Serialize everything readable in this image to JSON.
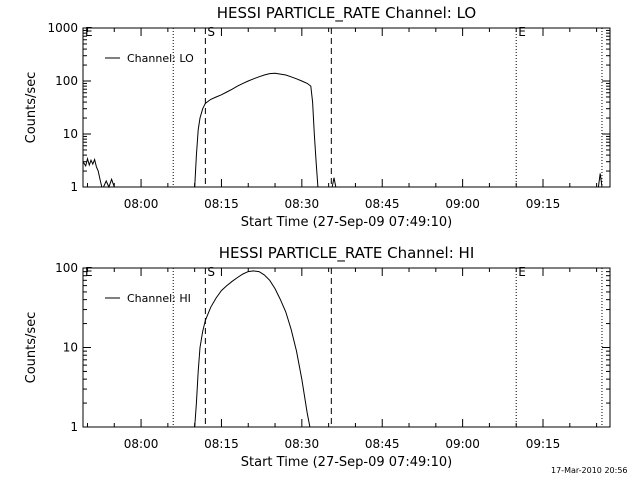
{
  "timestamp": "17-Mar-2010 20:56",
  "chart_data": [
    {
      "type": "line",
      "title": "HESSI PARTICLE_RATE Channel: LO",
      "xlabel": "Start Time (27-Sep-09 07:49:10)",
      "ylabel": "Counts/sec",
      "yscale": "log",
      "xlim": [
        "07:49:10",
        "09:27:30"
      ],
      "ylim": [
        1,
        1000
      ],
      "x_ticks": [
        "08:00",
        "08:15",
        "08:30",
        "08:45",
        "09:00",
        "09:15"
      ],
      "y_ticks": [
        "1",
        "10",
        "100",
        "1000"
      ],
      "legend": "Channel: LO",
      "legend_position": "top-left",
      "markers": [
        {
          "label": "E",
          "time": "07:49:10",
          "style": "dotted"
        },
        {
          "label": "S",
          "time": "08:12:00",
          "style": "dashed"
        },
        {
          "label": "",
          "time": "08:35:30",
          "style": "dashed"
        },
        {
          "label": "E",
          "time": "09:10:00",
          "style": "dotted"
        },
        {
          "label": "",
          "time": "08:06:00",
          "style": "dotted"
        },
        {
          "label": "",
          "time": "09:26:00",
          "style": "dotted"
        }
      ],
      "series": [
        {
          "name": "Channel: LO",
          "points": [
            [
              "07:49:10",
              3.0
            ],
            [
              "07:49:40",
              2.5
            ],
            [
              "07:50:00",
              3.4
            ],
            [
              "07:50:20",
              2.6
            ],
            [
              "07:50:40",
              3.2
            ],
            [
              "07:51:00",
              2.7
            ],
            [
              "07:51:20",
              3.3
            ],
            [
              "07:51:40",
              2.4
            ],
            [
              "07:52:00",
              2.0
            ],
            [
              "07:52:20",
              1.4
            ],
            [
              "07:52:40",
              1.0
            ],
            [
              "07:53:00",
              1.0
            ],
            [
              "07:53:30",
              1.3
            ],
            [
              "07:54:00",
              1.0
            ],
            [
              "07:54:30",
              1.4
            ],
            [
              "07:55:00",
              1.0
            ],
            [
              "08:10:00",
              1.0
            ],
            [
              "08:10:20",
              4
            ],
            [
              "08:10:40",
              12
            ],
            [
              "08:11:00",
              20
            ],
            [
              "08:11:30",
              30
            ],
            [
              "08:12:00",
              38
            ],
            [
              "08:13:00",
              45
            ],
            [
              "08:14:00",
              50
            ],
            [
              "08:15:00",
              55
            ],
            [
              "08:16:00",
              62
            ],
            [
              "08:17:00",
              70
            ],
            [
              "08:18:00",
              80
            ],
            [
              "08:19:00",
              90
            ],
            [
              "08:20:00",
              100
            ],
            [
              "08:21:00",
              110
            ],
            [
              "08:22:00",
              120
            ],
            [
              "08:23:00",
              130
            ],
            [
              "08:24:00",
              138
            ],
            [
              "08:25:00",
              140
            ],
            [
              "08:26:00",
              135
            ],
            [
              "08:27:00",
              130
            ],
            [
              "08:28:00",
              120
            ],
            [
              "08:29:00",
              110
            ],
            [
              "08:30:00",
              100
            ],
            [
              "08:31:00",
              90
            ],
            [
              "08:31:40",
              80
            ],
            [
              "08:32:00",
              40
            ],
            [
              "08:32:20",
              10
            ],
            [
              "08:32:40",
              3
            ],
            [
              "08:33:00",
              1.0
            ],
            [
              "08:35:40",
              1.0
            ],
            [
              "08:36:00",
              1.5
            ],
            [
              "08:36:20",
              1.0
            ],
            [
              "09:25:20",
              1.0
            ],
            [
              "09:25:40",
              1.8
            ],
            [
              "09:26:00",
              1.0
            ]
          ]
        }
      ]
    },
    {
      "type": "line",
      "title": "HESSI PARTICLE_RATE Channel: HI",
      "xlabel": "Start Time (27-Sep-09 07:49:10)",
      "ylabel": "Counts/sec",
      "yscale": "log",
      "xlim": [
        "07:49:10",
        "09:27:30"
      ],
      "ylim": [
        1,
        100
      ],
      "x_ticks": [
        "08:00",
        "08:15",
        "08:30",
        "08:45",
        "09:00",
        "09:15"
      ],
      "y_ticks": [
        "1",
        "10",
        "100"
      ],
      "legend": "Channel: HI",
      "legend_position": "top-left",
      "markers": [
        {
          "label": "E",
          "time": "07:49:10",
          "style": "dotted"
        },
        {
          "label": "S",
          "time": "08:12:00",
          "style": "dashed"
        },
        {
          "label": "",
          "time": "08:35:30",
          "style": "dashed"
        },
        {
          "label": "E",
          "time": "09:10:00",
          "style": "dotted"
        },
        {
          "label": "",
          "time": "08:06:00",
          "style": "dotted"
        },
        {
          "label": "",
          "time": "09:26:00",
          "style": "dotted"
        }
      ],
      "series": [
        {
          "name": "Channel: HI",
          "points": [
            [
              "08:10:00",
              1.0
            ],
            [
              "08:10:20",
              2
            ],
            [
              "08:10:40",
              5
            ],
            [
              "08:11:00",
              10
            ],
            [
              "08:11:30",
              16
            ],
            [
              "08:12:00",
              22
            ],
            [
              "08:13:00",
              32
            ],
            [
              "08:14:00",
              42
            ],
            [
              "08:15:00",
              52
            ],
            [
              "08:16:00",
              60
            ],
            [
              "08:17:00",
              68
            ],
            [
              "08:18:00",
              76
            ],
            [
              "08:19:00",
              84
            ],
            [
              "08:20:00",
              90
            ],
            [
              "08:21:00",
              92
            ],
            [
              "08:22:00",
              90
            ],
            [
              "08:23:00",
              82
            ],
            [
              "08:24:00",
              70
            ],
            [
              "08:25:00",
              55
            ],
            [
              "08:26:00",
              40
            ],
            [
              "08:27:00",
              28
            ],
            [
              "08:28:00",
              17
            ],
            [
              "08:29:00",
              9
            ],
            [
              "08:30:00",
              4
            ],
            [
              "08:31:00",
              1.5
            ],
            [
              "08:31:30",
              1.0
            ]
          ]
        }
      ]
    }
  ]
}
